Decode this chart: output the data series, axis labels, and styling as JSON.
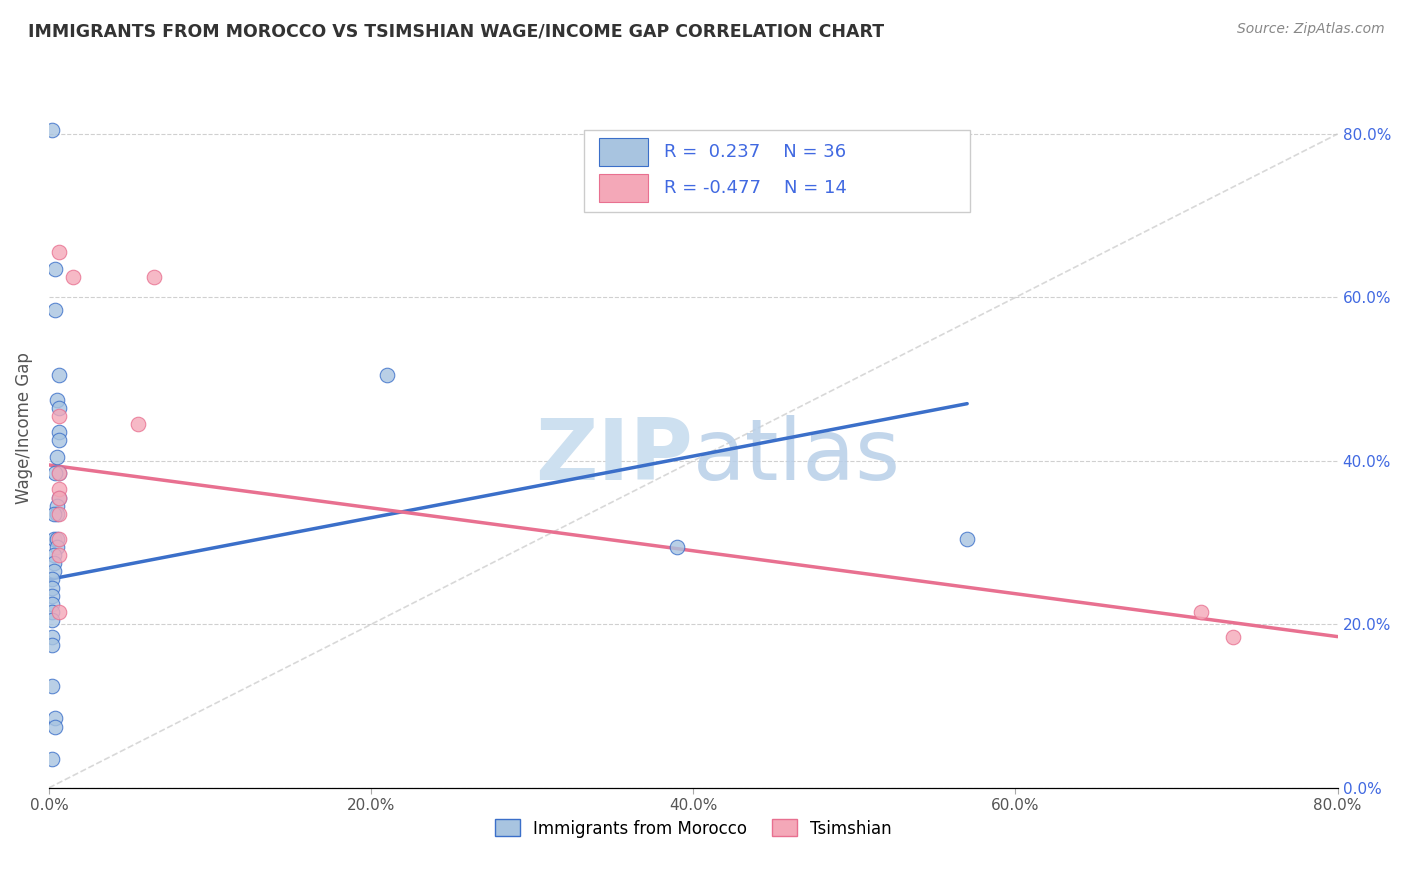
{
  "title": "IMMIGRANTS FROM MOROCCO VS TSIMSHIAN WAGE/INCOME GAP CORRELATION CHART",
  "source": "Source: ZipAtlas.com",
  "ylabel": "Wage/Income Gap",
  "blue_color": "#a8c4e0",
  "pink_color": "#f4a8b8",
  "blue_line_color": "#3b6fc9",
  "pink_line_color": "#e87090",
  "diag_line_color": "#c8c8c8",
  "r_value_color": "#4169e1",
  "blue_scatter": [
    [
      0.002,
      0.805
    ],
    [
      0.004,
      0.635
    ],
    [
      0.004,
      0.585
    ],
    [
      0.005,
      0.475
    ],
    [
      0.006,
      0.505
    ],
    [
      0.006,
      0.465
    ],
    [
      0.006,
      0.435
    ],
    [
      0.006,
      0.425
    ],
    [
      0.005,
      0.405
    ],
    [
      0.006,
      0.385
    ],
    [
      0.004,
      0.385
    ],
    [
      0.006,
      0.355
    ],
    [
      0.005,
      0.345
    ],
    [
      0.005,
      0.335
    ],
    [
      0.003,
      0.335
    ],
    [
      0.003,
      0.305
    ],
    [
      0.005,
      0.305
    ],
    [
      0.005,
      0.295
    ],
    [
      0.003,
      0.285
    ],
    [
      0.003,
      0.275
    ],
    [
      0.003,
      0.265
    ],
    [
      0.002,
      0.255
    ],
    [
      0.002,
      0.245
    ],
    [
      0.002,
      0.235
    ],
    [
      0.002,
      0.225
    ],
    [
      0.002,
      0.215
    ],
    [
      0.002,
      0.205
    ],
    [
      0.002,
      0.185
    ],
    [
      0.002,
      0.175
    ],
    [
      0.002,
      0.125
    ],
    [
      0.004,
      0.085
    ],
    [
      0.004,
      0.075
    ],
    [
      0.002,
      0.035
    ],
    [
      0.21,
      0.505
    ],
    [
      0.39,
      0.295
    ],
    [
      0.57,
      0.305
    ]
  ],
  "pink_scatter": [
    [
      0.006,
      0.655
    ],
    [
      0.015,
      0.625
    ],
    [
      0.065,
      0.625
    ],
    [
      0.006,
      0.455
    ],
    [
      0.055,
      0.445
    ],
    [
      0.006,
      0.385
    ],
    [
      0.006,
      0.365
    ],
    [
      0.006,
      0.355
    ],
    [
      0.006,
      0.335
    ],
    [
      0.006,
      0.305
    ],
    [
      0.006,
      0.215
    ],
    [
      0.006,
      0.285
    ],
    [
      0.715,
      0.215
    ],
    [
      0.735,
      0.185
    ]
  ],
  "blue_line_x": [
    0.0,
    0.57
  ],
  "blue_line_y": [
    0.255,
    0.47
  ],
  "pink_line_x": [
    0.0,
    0.8
  ],
  "pink_line_y": [
    0.395,
    0.185
  ],
  "diag_line_x": [
    0.0,
    0.8
  ],
  "diag_line_y": [
    0.0,
    0.8
  ],
  "xlim": [
    0.0,
    0.8
  ],
  "ylim": [
    0.0,
    0.88
  ],
  "xtick_positions": [
    0.0,
    0.2,
    0.4,
    0.6,
    0.8
  ],
  "xtick_labels": [
    "0.0%",
    "20.0%",
    "40.0%",
    "60.0%",
    "80.0%"
  ],
  "ytick_positions": [
    0.0,
    0.2,
    0.4,
    0.6,
    0.8
  ],
  "ytick_labels_right": [
    "0.0%",
    "20.0%",
    "40.0%",
    "60.0%",
    "80.0%"
  ],
  "grid_color": "#d0d0d0",
  "background_color": "#ffffff",
  "title_color": "#333333",
  "source_color": "#888888"
}
